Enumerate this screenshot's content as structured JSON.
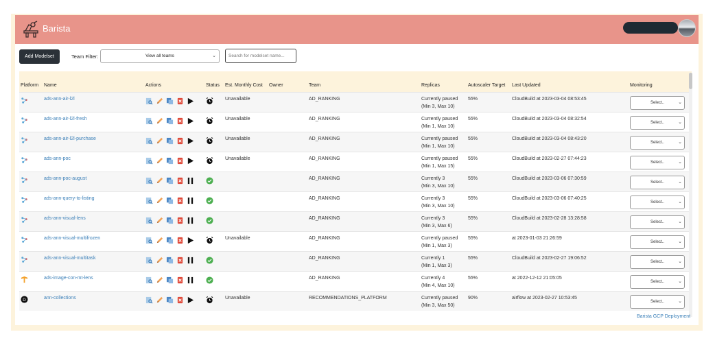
{
  "app": {
    "title": "Barista"
  },
  "toolbar": {
    "add_label": "Add Modelset",
    "team_filter_label": "Team Filter:",
    "team_filter_value": "View all teams",
    "search_placeholder": "Search for modelset name..."
  },
  "table": {
    "columns": [
      "Platform",
      "Name",
      "Actions",
      "Status",
      "Est. Monthly Cost",
      "Owner",
      "Team",
      "Replicas",
      "Autoscaler Target",
      "Last Updated",
      "Monitoring"
    ],
    "rows": [
      {
        "platform": "network-icon",
        "name": "ads-ann-air-l2l",
        "state": "paused",
        "cost": "Unavailable",
        "owner": "",
        "team": "AD_RANKING",
        "replicas1": "Currently paused",
        "replicas2": "(Min 3, Max 10)",
        "target": "55%",
        "updated": "CloudBuild at 2023-03-04 08:53:45",
        "monitoring": "Select.."
      },
      {
        "platform": "network-icon",
        "name": "ads-ann-air-l2l-fresh",
        "state": "paused",
        "cost": "Unavailable",
        "owner": "",
        "team": "AD_RANKING",
        "replicas1": "Currently paused",
        "replicas2": "(Min 1, Max 10)",
        "target": "55%",
        "updated": "CloudBuild at 2023-03-04 08:32:54",
        "monitoring": "Select.."
      },
      {
        "platform": "network-icon",
        "name": "ads-ann-air-l2l-purchase",
        "state": "paused",
        "cost": "Unavailable",
        "owner": "",
        "team": "AD_RANKING",
        "replicas1": "Currently paused",
        "replicas2": "(Min 1, Max 10)",
        "target": "55%",
        "updated": "CloudBuild at 2023-03-04 08:43:20",
        "monitoring": "Select.."
      },
      {
        "platform": "network-icon",
        "name": "ads-ann-poc",
        "state": "paused",
        "cost": "Unavailable",
        "owner": "",
        "team": "AD_RANKING",
        "replicas1": "Currently paused",
        "replicas2": "(Min 1, Max 15)",
        "target": "55%",
        "updated": "CloudBuild at 2023-02-27 07:44:23",
        "monitoring": "Select.."
      },
      {
        "platform": "network-icon",
        "name": "ads-ann-poc-august",
        "state": "running",
        "cost": "",
        "owner": "",
        "team": "AD_RANKING",
        "replicas1": "Currently 3",
        "replicas2": "(Min 3, Max 10)",
        "target": "55%",
        "updated": "CloudBuild at 2023-03-06 07:30:59",
        "monitoring": "Select.."
      },
      {
        "platform": "network-icon",
        "name": "ads-ann-query-to-listing",
        "state": "running",
        "cost": "",
        "owner": "",
        "team": "AD_RANKING",
        "replicas1": "Currently 3",
        "replicas2": "(Min 3, Max 10)",
        "target": "55%",
        "updated": "CloudBuild at 2023-03-06 07:40:25",
        "monitoring": "Select.."
      },
      {
        "platform": "network-icon",
        "name": "ads-ann-visual-lens",
        "state": "running",
        "cost": "",
        "owner": "",
        "team": "AD_RANKING",
        "replicas1": "Currently 3",
        "replicas2": "(Min 3, Max 6)",
        "target": "55%",
        "updated": "CloudBuild at 2023-02-28 13:28:58",
        "monitoring": "Select.."
      },
      {
        "platform": "network-icon",
        "name": "ads-ann-visual-multifrozen",
        "state": "paused",
        "cost": "Unavailable",
        "owner": "",
        "team": "AD_RANKING",
        "replicas1": "Currently paused",
        "replicas2": "(Min 1, Max 3)",
        "target": "55%",
        "updated": "at 2023-01-03 21:26:59",
        "monitoring": "Select.."
      },
      {
        "platform": "network-icon",
        "name": "ads-ann-visual-multitask",
        "state": "running",
        "cost": "",
        "owner": "",
        "team": "AD_RANKING",
        "replicas1": "Currently 1",
        "replicas2": "(Min 1, Max 3)",
        "target": "55%",
        "updated": "CloudBuild at 2023-02-27 19:06:52",
        "monitoring": "Select.."
      },
      {
        "platform": "tf-icon",
        "name": "ads-image-con-mt-lens",
        "state": "running",
        "cost": "",
        "owner": "",
        "team": "AD_RANKING",
        "replicas1": "Currently 4",
        "replicas2": "(Min 4, Max 10)",
        "target": "55%",
        "updated": "at 2022-12-12 21:05:05",
        "monitoring": "Select.."
      },
      {
        "platform": "d-icon",
        "name": "ann-collections",
        "state": "paused",
        "cost": "Unavailable",
        "owner": "",
        "team": "RECOMMENDATIONS_PLATFORM",
        "replicas1": "Currently paused",
        "replicas2": "(Min 3, Max 50)",
        "target": "90%",
        "updated": "airflow at 2023-02-27 10:53:45",
        "monitoring": "Select.."
      }
    ]
  },
  "footer": {
    "link": "Barista GCP Deployment"
  },
  "colors": {
    "header": "#e8948a",
    "frame": "#fdf3dc",
    "link": "#3a7fb8",
    "running": "#4caf50"
  }
}
